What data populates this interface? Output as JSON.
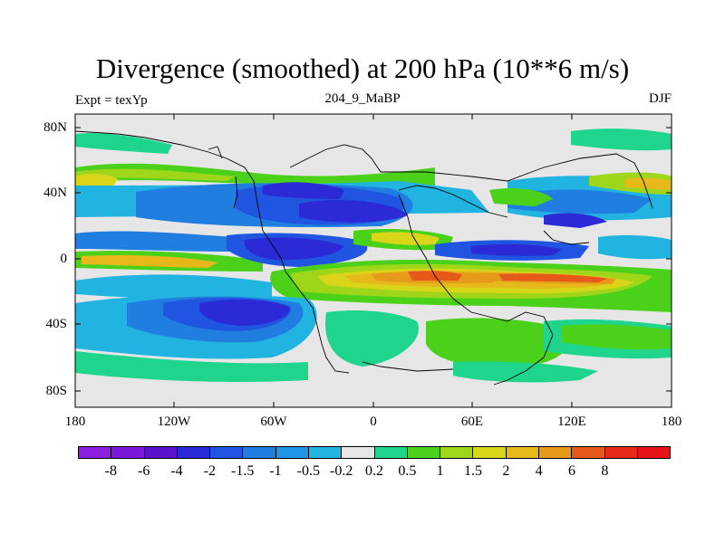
{
  "title": "Divergence (smoothed) at 200 hPa (10**6 m/s)",
  "subtitle": {
    "left": "Expt = texYp",
    "center": "204_9_MaBP",
    "right": "DJF"
  },
  "y_ticks": [
    "80N",
    "40N",
    "0",
    "40S",
    "80S"
  ],
  "x_ticks": [
    "180",
    "120W",
    "60W",
    "0",
    "60E",
    "120E",
    "180"
  ],
  "colorbar": {
    "colors": [
      "#8a1fe0",
      "#7a17d9",
      "#5a12cc",
      "#2c2ad6",
      "#1f55e0",
      "#1f7ee0",
      "#2196e6",
      "#22b4e0",
      "#e6e6e6",
      "#1fd48c",
      "#4cd11a",
      "#9fd61a",
      "#d9d61a",
      "#e6b81a",
      "#e69a1a",
      "#e6591a",
      "#e62a1a",
      "#e6141a"
    ],
    "labels": [
      "-8",
      "-6",
      "-4",
      "-2",
      "-1.5",
      "-1",
      "-0.5",
      "-0.2",
      "0.2",
      "0.5",
      "1",
      "1.5",
      "2",
      "4",
      "6",
      "8"
    ]
  }
}
